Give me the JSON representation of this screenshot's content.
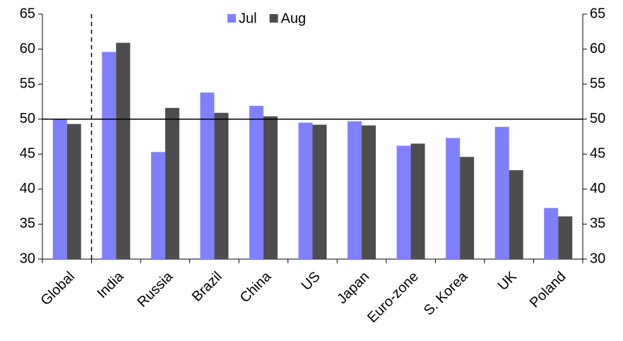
{
  "chart_data": {
    "type": "bar",
    "categories": [
      "Global",
      "India",
      "Russia",
      "Brazil",
      "China",
      "US",
      "Japan",
      "Euro-zone",
      "S. Korea",
      "UK",
      "Poland"
    ],
    "series": [
      {
        "name": "Jul",
        "color": "#8080ff",
        "values": [
          50.0,
          59.6,
          45.3,
          53.8,
          51.9,
          49.5,
          49.7,
          46.2,
          47.3,
          48.9,
          37.3
        ]
      },
      {
        "name": "Aug",
        "color": "#4d4d4d",
        "values": [
          49.3,
          60.9,
          51.6,
          50.9,
          50.4,
          49.2,
          49.1,
          46.5,
          44.6,
          42.7,
          36.1
        ]
      }
    ],
    "ylim": [
      30,
      65
    ],
    "yticks": [
      30,
      35,
      40,
      45,
      50,
      55,
      60,
      65
    ],
    "y2lim": [
      30,
      65
    ],
    "y2ticks": [
      30,
      35,
      40,
      45,
      50,
      55,
      60,
      65
    ],
    "hline": 50,
    "legend": "top"
  }
}
